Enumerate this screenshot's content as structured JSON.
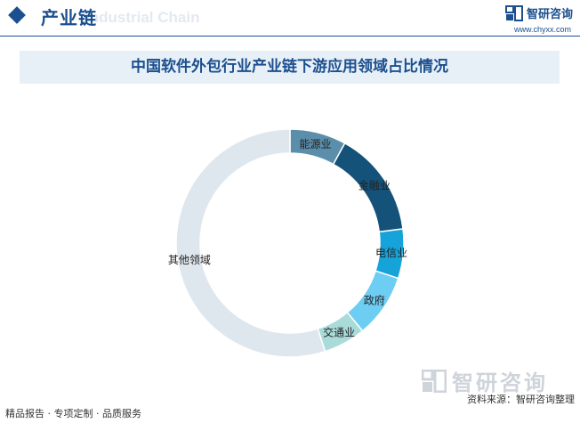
{
  "header": {
    "section_title": "产业链",
    "ghost_text": "Industrial Chain",
    "brand_name": "智研咨询",
    "brand_url": "www.chyxx.com"
  },
  "chart_data": {
    "type": "pie",
    "style": "donut",
    "title": "中国软件外包行业产业链下游应用领域占比情况",
    "slices": [
      {
        "label": "能源业",
        "value": 8,
        "color": "#5b8eaa"
      },
      {
        "label": "金融业",
        "value": 15,
        "color": "#14527a"
      },
      {
        "label": "电信业",
        "value": 7,
        "color": "#16a3d9"
      },
      {
        "label": "政府",
        "value": 9,
        "color": "#6dcdf2"
      },
      {
        "label": "交通业",
        "value": 6,
        "color": "#a9dbd9"
      },
      {
        "label": "其他领域",
        "value": 55,
        "color": "#dfe7ee"
      }
    ]
  },
  "footer": {
    "left": "精品报告 · 专项定制 · 品质服务",
    "source": "资料来源：智研咨询整理",
    "watermark_name": "智研咨询"
  }
}
